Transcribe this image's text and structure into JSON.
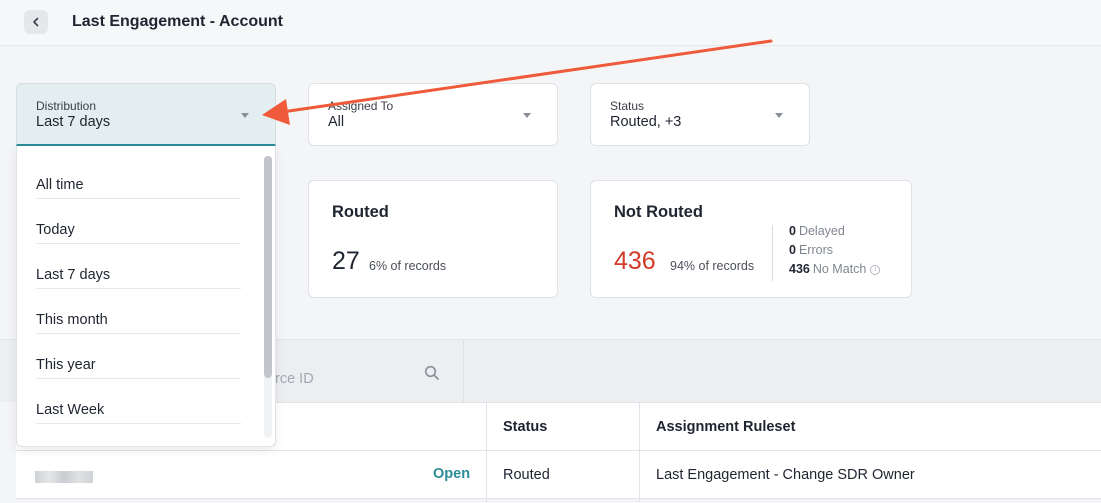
{
  "header": {
    "title": "Last Engagement - Account"
  },
  "filters": {
    "distribution": {
      "label": "Distribution",
      "value": "Last 7 days"
    },
    "assigned_to": {
      "label": "Assigned To",
      "value": "All"
    },
    "status": {
      "label": "Status",
      "value": "Routed, +3"
    }
  },
  "dropdown": {
    "options": [
      "All time",
      "Today",
      "Last 7 days",
      "This month",
      "This year",
      "Last Week"
    ]
  },
  "cards": {
    "routed": {
      "title": "Routed",
      "count": "27",
      "percent": "6% of records"
    },
    "not_routed": {
      "title": "Not Routed",
      "count": "436",
      "percent": "94% of records",
      "delayed_count": "0",
      "delayed_label": "Delayed",
      "errors_count": "0",
      "errors_label": "Errors",
      "nomatch_count": "436",
      "nomatch_label": "No Match"
    }
  },
  "search": {
    "placeholder": "rce ID"
  },
  "table": {
    "columns": [
      "Status",
      "Assignment Ruleset"
    ],
    "rows": [
      {
        "link": "Open",
        "status": "Routed",
        "ruleset": "Last Engagement - Change SDR Owner"
      }
    ]
  },
  "colors": {
    "accent": "#2b8c98",
    "alert": "#d23a2a",
    "annotation": "#ee5a3a"
  }
}
